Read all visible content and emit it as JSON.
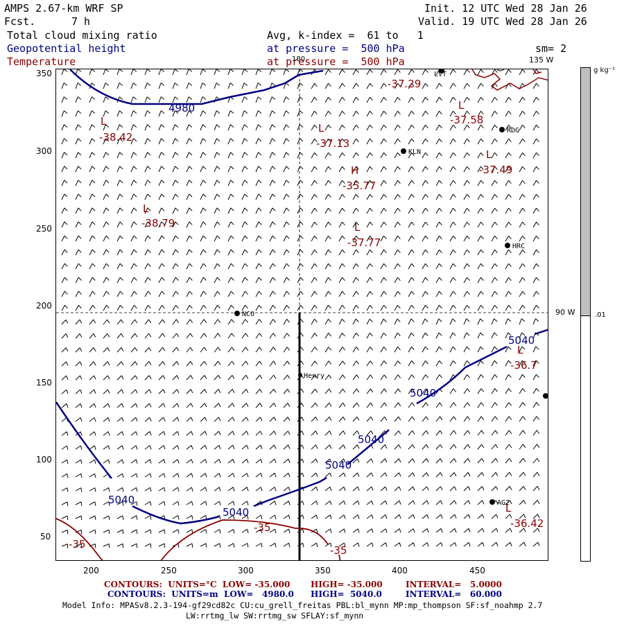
{
  "header": {
    "model": "AMPS 2.67-km WRF SP",
    "fcst_label": "Fcst.",
    "fcst_value": "7 h",
    "init": "Init. 12 UTC Wed 28 Jan 26",
    "valid": "Valid. 19 UTC Wed 28 Jan 26",
    "field1": "Total cloud mixing ratio",
    "field2": "Geopotential height",
    "field3": "Temperature",
    "avg": "Avg, k-index =  61 to   1",
    "pressure2": "at pressure =  500 hPa",
    "pressure3": "at pressure =  500 hPa",
    "smoothing": "sm= 2"
  },
  "colors": {
    "height": "#000080",
    "temperature": "#8b0000",
    "colorbar_fill": "#c0c0c0"
  },
  "axes": {
    "x_ticks": [
      "200",
      "250",
      "300",
      "350",
      "400",
      "450"
    ],
    "y_ticks": [
      "350",
      "300",
      "250",
      "200",
      "150",
      "100",
      "50"
    ]
  },
  "grid_labels": {
    "lon_180": "180",
    "lon_135w": "135 W",
    "lat_90w": "90 W"
  },
  "colorbar": {
    "unit": "g kg⁻¹",
    "level": ".01"
  },
  "height_labels": [
    "4980",
    "5040",
    "5040",
    "5040",
    "5040",
    "5040",
    "5040"
  ],
  "temp_labels": [
    "-35",
    "-35",
    "-35"
  ],
  "extrema": [
    {
      "type": "L",
      "value": "-38.42"
    },
    {
      "type": "L",
      "value": "-38.79"
    },
    {
      "type": "L",
      "value": "-37.13"
    },
    {
      "type": "H",
      "value": "-35.77"
    },
    {
      "type": "L",
      "value": "-37.77"
    },
    {
      "type": "L",
      "value": "-37.58"
    },
    {
      "type": "L",
      "value": "-37.49"
    },
    {
      "type": "L",
      "value": "-36.7"
    },
    {
      "type": "L",
      "value": "-36.42"
    },
    {
      "type": "",
      "value": "-37.29"
    }
  ],
  "stations": [
    "NCO",
    "Henry",
    "KLN",
    "RDG",
    "HRC",
    "AG2",
    "LVT"
  ],
  "footer": {
    "temp_contours": "CONTOURS:  UNITS=°C  LOW= -35.000",
    "temp_high": "HIGH= -35.000",
    "temp_interval": "INTERVAL=   5.0000",
    "hgt_contours": "CONTOURS:  UNITS=m  LOW=   4980.0",
    "hgt_high": "HIGH=  5040.0",
    "hgt_interval": "INTERVAL=   60.000",
    "model_info": "Model Info: MPASv8.2.3-194-gf29cd82c CU:cu_grell_freitas PBL:bl_mynn MP:mp_thompson SF:sf_noahmp 2.7",
    "model_info2": "LW:rrtmg_lw SW:rrtmg_sw SFLAY:sf_mynn"
  }
}
